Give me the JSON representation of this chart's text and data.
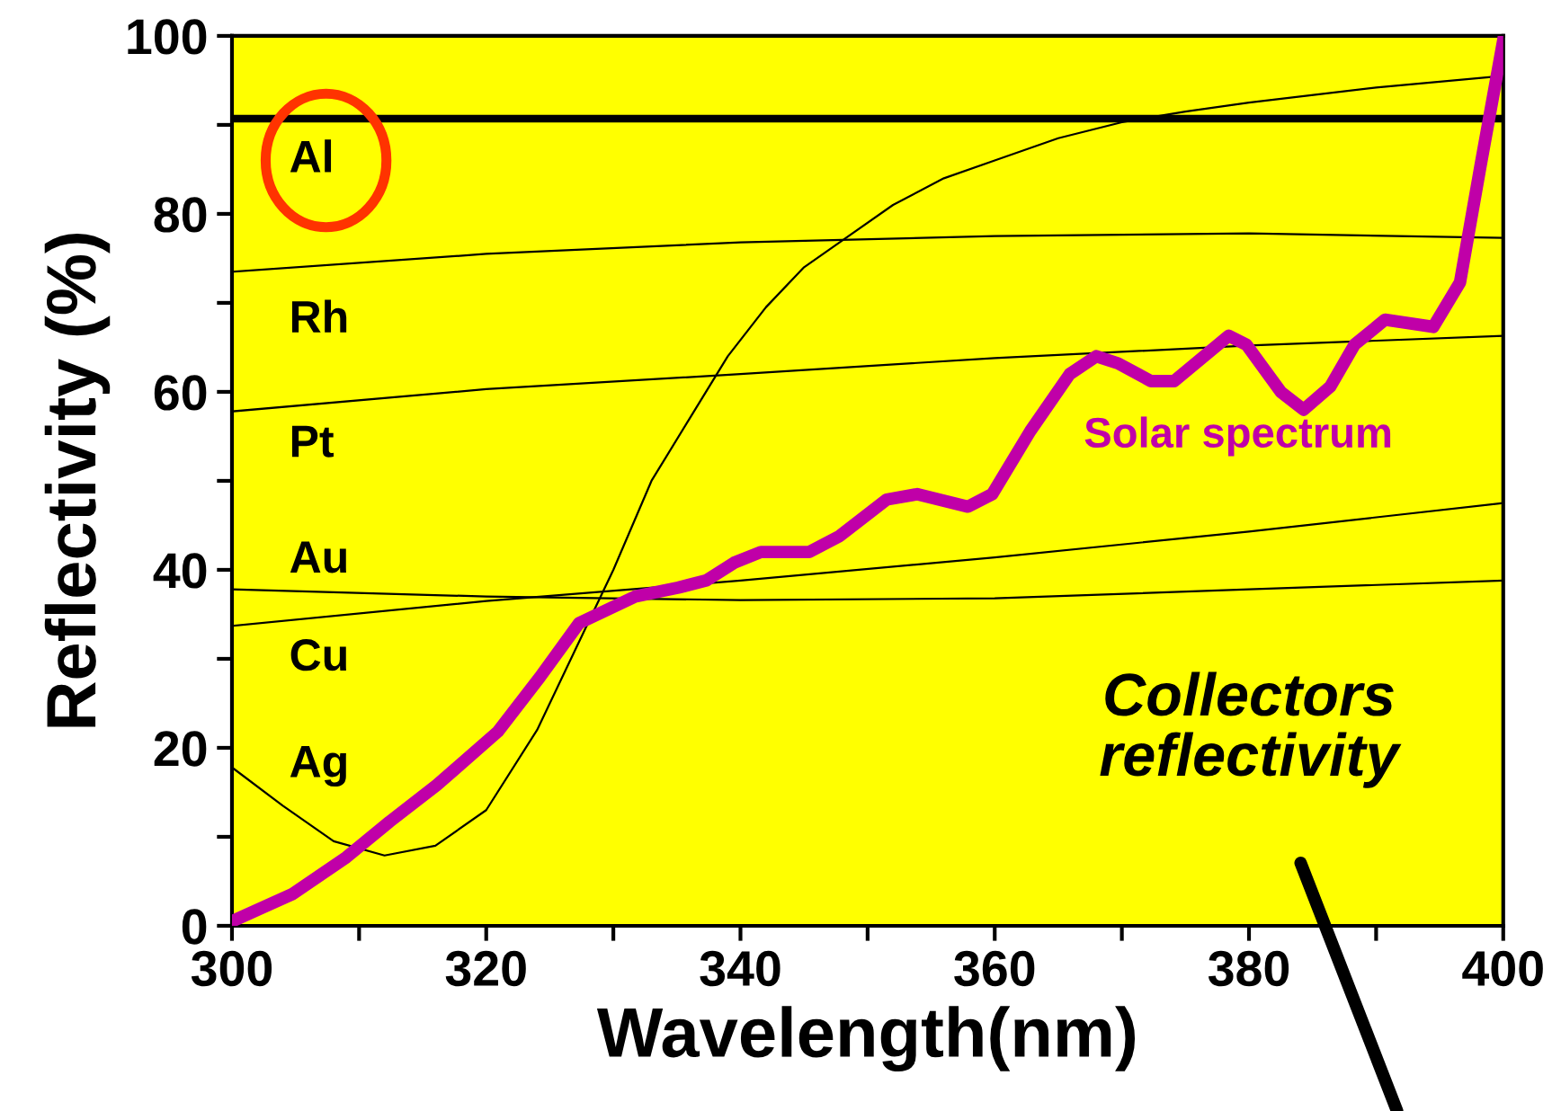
{
  "chart_data": {
    "type": "line",
    "xlabel": "Wavelength(nm)",
    "ylabel": "Reflectivity (%)",
    "xlim": [
      300,
      400
    ],
    "ylim": [
      0,
      100
    ],
    "xticks": [
      300,
      {
        "value": 310,
        "label": null
      },
      320,
      {
        "value": 330,
        "label": null
      },
      340,
      {
        "value": 350,
        "label": null
      },
      360,
      {
        "value": 370,
        "label": null
      },
      380,
      {
        "value": 390,
        "label": null
      },
      400
    ],
    "yticks": [
      0,
      {
        "value": 10,
        "label": null
      },
      20,
      {
        "value": 30,
        "label": null
      },
      40,
      {
        "value": 50,
        "label": null
      },
      60,
      {
        "value": 70,
        "label": null
      },
      80,
      {
        "value": 90,
        "label": null
      },
      100
    ],
    "grid": false,
    "legend": "left",
    "marker": "none",
    "line_style": "solid",
    "annotations": [
      "Collectors reflectivity"
    ],
    "series": [
      {
        "name": "Al",
        "color": "#000000",
        "x": [
          300,
          400
        ],
        "values": [
          90.7,
          90.7
        ]
      },
      {
        "name": "Rh",
        "color": "#000000",
        "x": [
          300,
          320,
          340,
          360,
          380,
          400
        ],
        "values": [
          73.5,
          75.5,
          76.8,
          77.5,
          77.8,
          77.3
        ]
      },
      {
        "name": "Pt",
        "color": "#000000",
        "x": [
          300,
          320,
          340,
          360,
          380,
          400
        ],
        "values": [
          57.8,
          60.3,
          62.0,
          63.8,
          65.2,
          66.3
        ]
      },
      {
        "name": "Au",
        "color": "#000000",
        "x": [
          300,
          320,
          340,
          360,
          380,
          400
        ],
        "values": [
          37.8,
          37.0,
          36.6,
          36.8,
          37.8,
          38.8
        ]
      },
      {
        "name": "Cu",
        "color": "#000000",
        "x": [
          300,
          320,
          340,
          360,
          380,
          400
        ],
        "values": [
          33.7,
          36.5,
          38.8,
          41.4,
          44.3,
          47.5
        ]
      },
      {
        "name": "Ag",
        "color": "#000000",
        "x": [
          300,
          304,
          308,
          312,
          316,
          320,
          324,
          327,
          330,
          333,
          336,
          339,
          342,
          345,
          348,
          352,
          356,
          360,
          365,
          370,
          375,
          380,
          390,
          400
        ],
        "values": [
          17.8,
          13.5,
          9.5,
          7.9,
          9,
          13,
          22,
          31,
          40,
          50,
          57,
          64,
          69.5,
          74,
          77,
          81,
          84,
          86,
          88.5,
          90.3,
          91.5,
          92.5,
          94.2,
          95.5
        ]
      },
      {
        "name": "Solar spectrum",
        "color": "#c000a8",
        "x": [
          300,
          304.8,
          309,
          312.4,
          316.1,
          320.9,
          324.2,
          327.3,
          331.7,
          335.1,
          337.3,
          339.5,
          341.6,
          345.4,
          347.8,
          351.5,
          353.9,
          357.9,
          359.8,
          362.8,
          365.9,
          368,
          369.7,
          372.3,
          374.1,
          378.4,
          379.8,
          382.5,
          384.3,
          386.4,
          388.3,
          390.7,
          394.5,
          396.6,
          398.2,
          400
        ],
        "values": [
          0.5,
          3.6,
          7.7,
          11.7,
          15.8,
          21.8,
          27.9,
          34,
          37,
          38,
          38.8,
          40.8,
          42,
          42,
          43.8,
          47.9,
          48.5,
          47.1,
          48.5,
          55.6,
          62,
          64,
          63.2,
          61.2,
          61.2,
          66.3,
          65.3,
          60,
          58,
          60.6,
          65.3,
          68.1,
          67.3,
          72.3,
          85.3,
          99.5
        ]
      }
    ]
  }
}
